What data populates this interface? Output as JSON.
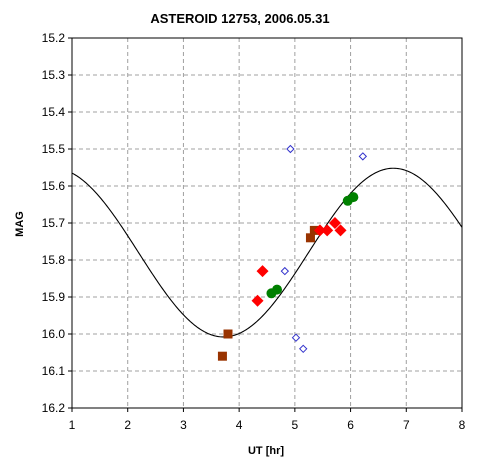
{
  "chart_data": {
    "type": "scatter",
    "title": "ASTEROID 12753, 2006.05.31",
    "xlabel": "UT [hr]",
    "ylabel": "MAG",
    "xlim": [
      1,
      8
    ],
    "ylim": [
      15.2,
      16.2
    ],
    "y_inverted": true,
    "grid": true,
    "x_ticks": [
      "1",
      "2",
      "3",
      "4",
      "5",
      "6",
      "7",
      "8"
    ],
    "y_ticks": [
      "15.2",
      "15.3",
      "15.4",
      "15.5",
      "15.6",
      "15.7",
      "15.8",
      "15.9",
      "16.0",
      "16.1",
      "16.2"
    ],
    "colors": {
      "brown": "#993300",
      "red": "#ff0000",
      "green": "#008000",
      "blue": "#3333cc",
      "curve": "#000000",
      "grid": "#a0a0a0"
    },
    "series": [
      {
        "marker": "square",
        "color": "#993300",
        "points": [
          [
            3.7,
            16.06
          ],
          [
            3.8,
            16.0
          ],
          [
            5.28,
            15.74
          ],
          [
            5.35,
            15.72
          ]
        ]
      },
      {
        "marker": "diamond",
        "color": "#ff0000",
        "points": [
          [
            4.33,
            15.91
          ],
          [
            4.42,
            15.83
          ],
          [
            5.45,
            15.72
          ],
          [
            5.58,
            15.72
          ],
          [
            5.72,
            15.7
          ],
          [
            5.82,
            15.72
          ]
        ]
      },
      {
        "marker": "circle",
        "color": "#008000",
        "points": [
          [
            4.58,
            15.89
          ],
          [
            4.68,
            15.88
          ],
          [
            5.95,
            15.64
          ],
          [
            6.05,
            15.63
          ]
        ]
      },
      {
        "marker": "open-diamond",
        "color": "#3333cc",
        "points": [
          [
            4.82,
            15.83
          ],
          [
            4.92,
            15.5
          ],
          [
            5.02,
            16.01
          ],
          [
            5.15,
            16.04
          ],
          [
            6.22,
            15.52
          ]
        ]
      }
    ],
    "fit_curve": {
      "type": "sine",
      "mean": 15.78,
      "amplitude": 0.228,
      "period_hr": 6.1,
      "min_at_hr": 3.72
    }
  }
}
